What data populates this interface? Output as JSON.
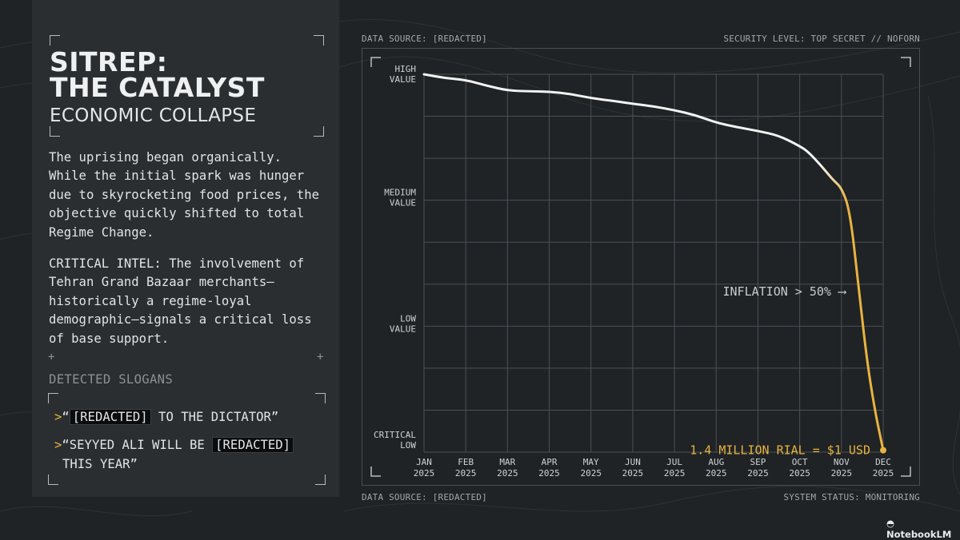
{
  "panel": {
    "title_line_1": "SITREP:",
    "title_line_2": "THE CATALYST",
    "subtitle": "ECONOMIC COLLAPSE",
    "paragraph_1_lines": [
      "The uprising began organically.",
      "While the initial spark was hunger",
      "due to skyrocketing food prices, the",
      "objective quickly shifted to total",
      "Regime Change."
    ],
    "paragraph_2_lines": [
      "CRITICAL INTEL: The involvement of",
      "Tehran Grand Bazaar merchants—",
      "historically a regime-loyal",
      "demographic—signals a critical loss",
      "of base support."
    ],
    "slogans_heading": "DETECTED SLOGANS",
    "slogan_1": {
      "marker": ">",
      "open_quote": "“",
      "redacted": "[REDACTED]",
      "rest": " TO THE DICTATOR”"
    },
    "slogan_2": {
      "marker": ">",
      "before": "“SEYYED ALI WILL BE ",
      "redacted": "[REDACTED]",
      "line_2": "THIS YEAR”"
    }
  },
  "meta": {
    "top_left": "DATA SOURCE: [REDACTED]",
    "top_right": "SECURITY LEVEL: TOP SECRET // NOFORN",
    "bottom_left": "DATA SOURCE: [REDACTED]",
    "bottom_right": "SYSTEM STATUS: MONITORING"
  },
  "brand": "NotebookLM",
  "chart_data": {
    "type": "line",
    "title": "",
    "xlabel": "",
    "ylabel": "",
    "categories": [
      [
        "JAN",
        "2025"
      ],
      [
        "FEB",
        "2025"
      ],
      [
        "MAR",
        "2025"
      ],
      [
        "APR",
        "2025"
      ],
      [
        "MAY",
        "2025"
      ],
      [
        "JUN",
        "2025"
      ],
      [
        "JUL",
        "2025"
      ],
      [
        "AUG",
        "2025"
      ],
      [
        "SEP",
        "2025"
      ],
      [
        "OCT",
        "2025"
      ],
      [
        "NOV",
        "2025"
      ],
      [
        "DEC",
        "2025"
      ]
    ],
    "y_ticks": [
      {
        "value": 1.0,
        "lines": [
          "HIGH",
          "VALUE"
        ]
      },
      {
        "value": 0.667,
        "lines": [
          "MEDIUM",
          "VALUE"
        ]
      },
      {
        "value": 0.333,
        "lines": [
          "LOW",
          "VALUE"
        ]
      },
      {
        "value": 0.0,
        "lines": [
          "CRITICAL",
          "LOW"
        ]
      }
    ],
    "ylim": [
      0,
      1
    ],
    "grid": true,
    "series": [
      {
        "x": [
          0,
          0.5,
          1,
          1.5,
          2,
          2.5,
          3,
          3.5,
          4,
          4.5,
          5,
          5.5,
          6,
          6.5,
          7,
          7.5,
          8,
          8.5,
          9,
          9.2,
          9.5,
          9.8,
          10,
          10.2,
          10.4,
          10.6,
          10.8,
          11
        ],
        "y": [
          1.0,
          0.99,
          0.985,
          0.97,
          0.957,
          0.955,
          0.954,
          0.948,
          0.937,
          0.93,
          0.922,
          0.915,
          0.905,
          0.892,
          0.872,
          0.86,
          0.85,
          0.838,
          0.81,
          0.795,
          0.76,
          0.72,
          0.7,
          0.64,
          0.45,
          0.25,
          0.11,
          0.005
        ]
      }
    ],
    "highlight_from_x": 9.5,
    "colors": {
      "line": "#f2f2f2",
      "highlight": "#e9b33f",
      "grid": "#4c5054"
    },
    "annotations": [
      {
        "text": "INFLATION > 50% ⟶",
        "x": 10.1,
        "y": 0.425
      },
      {
        "text": "1.4 MILLION RIAL = $1 USD",
        "x": 11,
        "y": 0.005
      }
    ]
  }
}
